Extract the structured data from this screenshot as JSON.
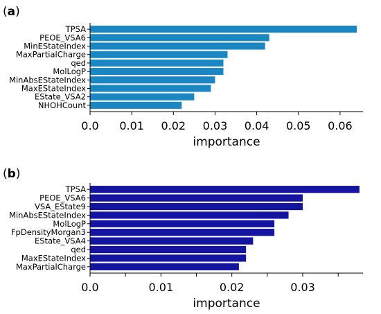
{
  "chart_data": [
    {
      "type": "bar",
      "orientation": "horizontal",
      "panel_label": "a",
      "categories": [
        "TPSA",
        "PEOE_VSA6",
        "MinEStateIndex",
        "MaxPartialCharge",
        "qed",
        "MolLogP",
        "MinAbsEStateIndex",
        "MaxEStateIndex",
        "EState_VSA2",
        "NHOHCount"
      ],
      "values": [
        0.064,
        0.043,
        0.042,
        0.033,
        0.032,
        0.032,
        0.03,
        0.029,
        0.025,
        0.022
      ],
      "xlabel": "importance",
      "ylabel": "",
      "xlim": [
        0,
        0.0655
      ],
      "xticks": [
        0.0,
        0.01,
        0.02,
        0.03,
        0.04,
        0.05,
        0.06
      ],
      "xtick_labels": [
        "0.0",
        "0.01",
        "0.02",
        "0.03",
        "0.04",
        "0.05",
        "0.06"
      ],
      "bar_color": "#1a86c2",
      "grid": false
    },
    {
      "type": "bar",
      "orientation": "horizontal",
      "panel_label": "b",
      "categories": [
        "TPSA",
        "PEOE_VSA6",
        "VSA_EState9",
        "MinAbsEStateIndex",
        "MolLogP",
        "FpDensityMorgan3",
        "EState_VSA4",
        "qed",
        "MaxEStateIndex",
        "MaxPartialCharge"
      ],
      "values": [
        0.038,
        0.03,
        0.03,
        0.028,
        0.026,
        0.026,
        0.023,
        0.022,
        0.022,
        0.021
      ],
      "xlabel": "importance",
      "ylabel": "",
      "xlim": [
        0,
        0.0385
      ],
      "xticks": [
        0.0,
        0.005,
        0.01,
        0.015,
        0.02,
        0.025,
        0.03,
        0.035
      ],
      "xtick_labels": [
        "0.0",
        "",
        "0.01",
        "",
        "0.02",
        "",
        "0.03",
        ""
      ],
      "bar_color": "#1414a0",
      "grid": false
    }
  ]
}
